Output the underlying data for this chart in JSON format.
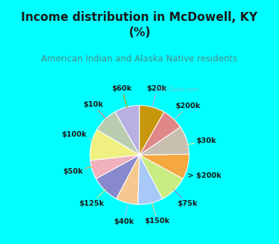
{
  "title": "Income distribution in McDowell, KY\n(%)",
  "subtitle": "American Indian and Alaska Native residents",
  "watermark": "City-Data.com",
  "labels": [
    "$20k",
    "$200k",
    "$30k",
    "> $200k",
    "$75k",
    "$150k",
    "$40k",
    "$125k",
    "$50k",
    "$100k",
    "$10k",
    "$60k"
  ],
  "values": [
    8,
    8,
    10,
    6,
    9,
    7,
    8,
    9,
    8,
    9,
    7,
    8
  ],
  "colors": [
    "#b8b0e0",
    "#b8ccb0",
    "#f0f080",
    "#f0b0bc",
    "#8888cc",
    "#f5c890",
    "#a8c8f8",
    "#c8ec80",
    "#f5a840",
    "#c8bfb0",
    "#e08888",
    "#c8960a"
  ],
  "background_top": "#00ffff",
  "background_chart_color": "#d0ede0",
  "title_color": "#1a1a1a",
  "subtitle_color": "#508888",
  "label_fontsize": 7.5,
  "title_fontsize": 12,
  "subtitle_fontsize": 9
}
